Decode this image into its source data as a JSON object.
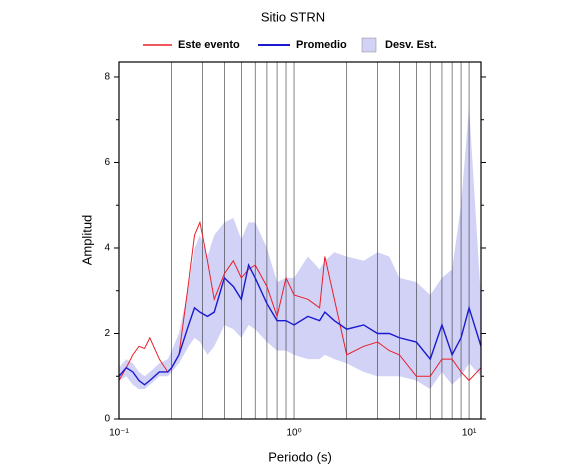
{
  "chart_data": {
    "type": "band-line",
    "title": "Sitio STRN",
    "xlabel": "Periodo (s)",
    "ylabel": "Amplitud",
    "xscale": "log",
    "xgrid": true,
    "ygrid": false,
    "xlim": [
      0.1,
      11.7
    ],
    "ylim": [
      0,
      8.35
    ],
    "xticks": [
      {
        "value": 0.1,
        "label": "10⁻¹"
      },
      {
        "value": 1,
        "label": "10⁰"
      },
      {
        "value": 10,
        "label": "10¹"
      }
    ],
    "xminorticks": [
      0.2,
      0.3,
      0.4,
      0.5,
      0.6,
      0.7,
      0.8,
      0.9,
      2,
      3,
      4,
      5,
      6,
      7,
      8,
      9
    ],
    "yticks": [
      0,
      2,
      4,
      6,
      8
    ],
    "yminorticks": [
      1,
      3,
      5,
      7
    ],
    "x": [
      0.1,
      0.11,
      0.12,
      0.13,
      0.14,
      0.15,
      0.17,
      0.19,
      0.2,
      0.22,
      0.25,
      0.27,
      0.29,
      0.32,
      0.35,
      0.4,
      0.45,
      0.5,
      0.55,
      0.6,
      0.7,
      0.8,
      0.9,
      1,
      1.2,
      1.4,
      1.5,
      1.7,
      2,
      2.5,
      3,
      3.5,
      4,
      5,
      6,
      7,
      8,
      9,
      10,
      11.7
    ],
    "band": {
      "name": "Desv. Est.",
      "color": "#d2d2f7",
      "lower": [
        0.9,
        1.0,
        0.8,
        0.7,
        0.7,
        0.8,
        1.0,
        1.0,
        1.1,
        1.3,
        1.7,
        1.9,
        1.8,
        1.5,
        1.7,
        2.2,
        2.1,
        1.9,
        2.2,
        2.1,
        1.8,
        1.6,
        1.6,
        1.5,
        1.4,
        1.4,
        1.5,
        1.4,
        1.3,
        1.1,
        1.0,
        1.0,
        1.0,
        0.9,
        0.7,
        1.1,
        0.8,
        1.0,
        1.3,
        1.0
      ],
      "upper": [
        1.2,
        1.4,
        1.3,
        1.1,
        1.0,
        1.1,
        1.3,
        1.4,
        1.6,
        2.0,
        3.1,
        4.0,
        4.3,
        3.8,
        4.3,
        4.6,
        4.7,
        4.2,
        4.6,
        4.6,
        4.0,
        3.2,
        3.3,
        3.3,
        3.8,
        3.5,
        3.7,
        3.9,
        3.8,
        3.7,
        3.9,
        3.8,
        3.3,
        3.2,
        2.9,
        3.3,
        3.5,
        5.0,
        7.3,
        2.8
      ]
    },
    "series": [
      {
        "name": "Este evento",
        "color": "#e8202a",
        "values": [
          0.9,
          1.2,
          1.5,
          1.7,
          1.65,
          1.9,
          1.4,
          1.1,
          1.2,
          1.5,
          3.2,
          4.3,
          4.6,
          3.7,
          2.8,
          3.4,
          3.7,
          3.3,
          3.5,
          3.6,
          3.1,
          2.4,
          3.3,
          2.9,
          2.8,
          2.6,
          3.8,
          2.8,
          1.5,
          1.7,
          1.8,
          1.6,
          1.5,
          1.0,
          1.0,
          1.4,
          1.4,
          1.1,
          0.9,
          1.2
        ]
      },
      {
        "name": "Promedio",
        "color": "#1a1ad0",
        "values": [
          1.0,
          1.2,
          1.1,
          0.9,
          0.8,
          0.9,
          1.1,
          1.1,
          1.2,
          1.5,
          2.2,
          2.6,
          2.5,
          2.4,
          2.5,
          3.3,
          3.1,
          2.8,
          3.6,
          3.3,
          2.7,
          2.3,
          2.3,
          2.2,
          2.4,
          2.3,
          2.5,
          2.3,
          2.1,
          2.2,
          2.0,
          2.0,
          1.9,
          1.8,
          1.4,
          2.2,
          1.5,
          1.9,
          2.6,
          1.7
        ]
      }
    ]
  }
}
